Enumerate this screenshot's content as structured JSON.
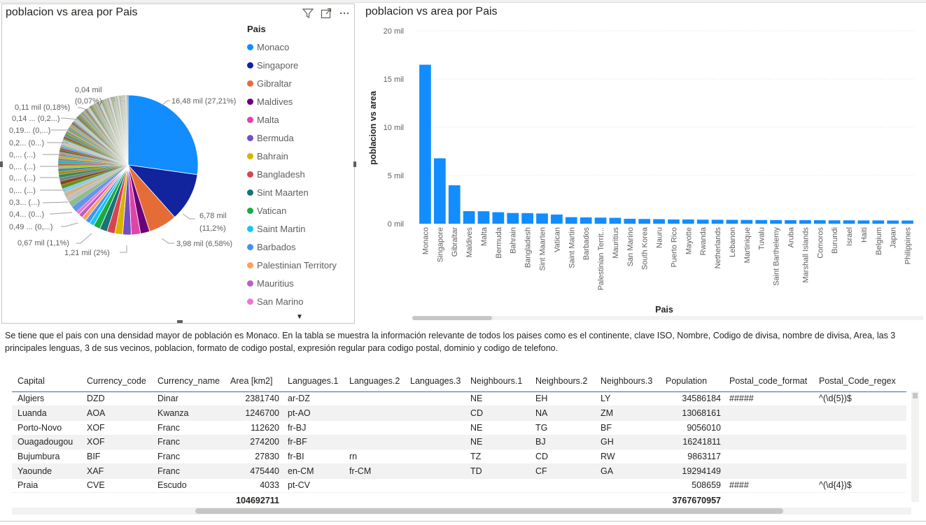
{
  "pie_visual": {
    "title": "poblacion vs area por Pais",
    "legend_title": "Pais",
    "legend_items": [
      {
        "label": "Monaco",
        "color": "#118DFF"
      },
      {
        "label": "Singapore",
        "color": "#12239E"
      },
      {
        "label": "Gibraltar",
        "color": "#E66C37"
      },
      {
        "label": "Maldives",
        "color": "#6B007B"
      },
      {
        "label": "Malta",
        "color": "#E044A7"
      },
      {
        "label": "Bermuda",
        "color": "#744EC2"
      },
      {
        "label": "Bahrain",
        "color": "#D9B300"
      },
      {
        "label": "Bangladesh",
        "color": "#D64550"
      },
      {
        "label": "Sint Maarten",
        "color": "#197278"
      },
      {
        "label": "Vatican",
        "color": "#1AAB40"
      },
      {
        "label": "Saint Martin",
        "color": "#15C6F4"
      },
      {
        "label": "Barbados",
        "color": "#4092FF"
      },
      {
        "label": "Palestinian Territory",
        "color": "#FFA058"
      },
      {
        "label": "Mauritius",
        "color": "#BE5DC9"
      },
      {
        "label": "San Marino",
        "color": "#F472D0"
      }
    ],
    "data_labels": {
      "monaco": "16,48 mil (27,21%)",
      "singapore_a": "6,78 mil",
      "singapore_b": "(11,2%)",
      "gibraltar": "3,98 mil (6,58%)",
      "l121": "1,21 mil (2%)",
      "l067": "0,67 mil (1,1%)",
      "l049": "0,49 ... (0,...)",
      "l04": "0,4... (0...)",
      "l03": "0,3... (...)",
      "s1": "0,... (...)",
      "s2": "0,... (...)",
      "s3": "0,... (...)",
      "s4": "0,... (...)",
      "l02": "0,2... (0...)",
      "l019": "0,19... (0,...)",
      "l014": "0,14 ... (0,2...)",
      "l011": "0,11 mil (0,18%)",
      "l004a": "0,04 mil",
      "l004b": "(0,07%)"
    }
  },
  "chart_data": {
    "type": "bar",
    "title": "poblacion vs area por Pais",
    "xlabel": "Pais",
    "ylabel": "poblacion vs area",
    "ylim": [
      0,
      20000
    ],
    "yticks": [
      "0 mil",
      "5 mil",
      "10 mil",
      "15 mil",
      "20 mil"
    ],
    "ytick_values": [
      0,
      5000,
      10000,
      15000,
      20000
    ],
    "bar_color": "#118DFF",
    "grid": true,
    "categories": [
      "Monaco",
      "Singapore",
      "Gibraltar",
      "Maldives",
      "Malta",
      "Bermuda",
      "Bahrain",
      "Bangladesh",
      "Sint Maarten",
      "Vatican",
      "Saint Martin",
      "Barbados",
      "Palestinian Territ...",
      "Mauritius",
      "San Marino",
      "South Korea",
      "Nauru",
      "Puerto Rico",
      "Mayotte",
      "Rwanda",
      "Netherlands",
      "Lebanon",
      "Martinique",
      "Tuvalu",
      "Saint Barthelemy",
      "Aruba",
      "Marshall Islands",
      "Comoros",
      "Burundi",
      "Israel",
      "Haiti",
      "Belgium",
      "Japan",
      "Philippines"
    ],
    "values": [
      16480,
      6780,
      3980,
      1300,
      1290,
      1190,
      1110,
      1100,
      1060,
      950,
      680,
      650,
      630,
      610,
      510,
      490,
      470,
      440,
      440,
      420,
      410,
      400,
      390,
      380,
      380,
      370,
      370,
      360,
      350,
      350,
      340,
      340,
      330,
      330
    ]
  },
  "description": "Se tiene que el pais con una densidad mayor de población es Monaco. En la tabla se muestra la información relevante de todos los paises como es el continente, clave ISO, Nombre, Codigo de divisa, nombre de divisa, Area, las 3 principales lenguas, 3 de sus vecinos, poblacion, formato de codigo postal, expresión regular para codigo postal, dominio y codigo de telefono.",
  "table": {
    "columns": [
      "Capital",
      "Currency_code",
      "Currency_name",
      "Area [km2]",
      "Languages.1",
      "Languages.2",
      "Languages.3",
      "Neighbours.1",
      "Neighbours.2",
      "Neighbours.3",
      "Population",
      "Postal_code_format",
      "Postal_Code_regex"
    ],
    "rows": [
      [
        "Algiers",
        "DZD",
        "Dinar",
        "2381740",
        "ar-DZ",
        "",
        "",
        "NE",
        "EH",
        "LY",
        "34586184",
        "#####",
        "^(\\d{5})$"
      ],
      [
        "Luanda",
        "AOA",
        "Kwanza",
        "1246700",
        "pt-AO",
        "",
        "",
        "CD",
        "NA",
        "ZM",
        "13068161",
        "",
        ""
      ],
      [
        "Porto-Novo",
        "XOF",
        "Franc",
        "112620",
        "fr-BJ",
        "",
        "",
        "NE",
        "TG",
        "BF",
        "9056010",
        "",
        ""
      ],
      [
        "Ouagadougou",
        "XOF",
        "Franc",
        "274200",
        "fr-BF",
        "",
        "",
        "NE",
        "BJ",
        "GH",
        "16241811",
        "",
        ""
      ],
      [
        "Bujumbura",
        "BIF",
        "Franc",
        "27830",
        "fr-BI",
        "rn",
        "",
        "TZ",
        "CD",
        "RW",
        "9863117",
        "",
        ""
      ],
      [
        "Yaounde",
        "XAF",
        "Franc",
        "475440",
        "en-CM",
        "fr-CM",
        "",
        "TD",
        "CF",
        "GA",
        "19294149",
        "",
        ""
      ],
      [
        "Praia",
        "CVE",
        "Escudo",
        "4033",
        "pt-CV",
        "",
        "",
        "",
        "",
        "",
        "508659",
        "####",
        "^(\\d{4})$"
      ]
    ],
    "totals": {
      "area": "104692711",
      "population": "3767670957"
    }
  }
}
